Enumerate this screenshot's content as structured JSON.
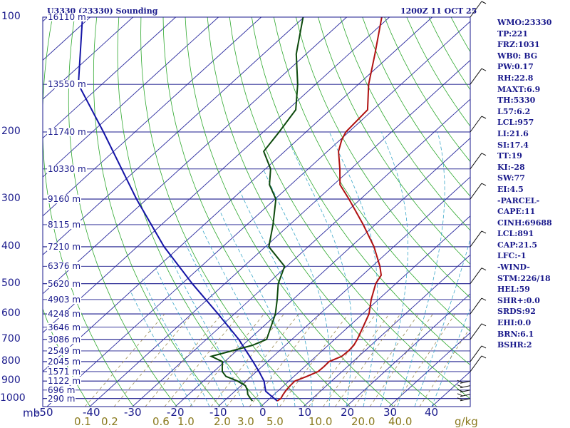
{
  "chart_data": {
    "type": "line",
    "title": "U3330 (23330) Sounding",
    "datetime": "1200Z 11 OCT 25",
    "y_axis_label": "mb",
    "y_axis_unit_label": "-50",
    "mixing_ratio_unit": "g/kg",
    "pressure_ticks": [
      "100",
      "200",
      "300",
      "400",
      "500",
      "600",
      "700",
      "800",
      "900",
      "1000"
    ],
    "height_labels": [
      {
        "p": 100,
        "label": "16110 m"
      },
      {
        "p": 150,
        "label": "13550 m"
      },
      {
        "p": 200,
        "label": "11740 m"
      },
      {
        "p": 250,
        "label": "10330 m"
      },
      {
        "p": 300,
        "label": "9160 m"
      },
      {
        "p": 350,
        "label": "8115 m"
      },
      {
        "p": 400,
        "label": "7210 m"
      },
      {
        "p": 450,
        "label": "6376 m"
      },
      {
        "p": 500,
        "label": "5620 m"
      },
      {
        "p": 550,
        "label": "4903 m"
      },
      {
        "p": 600,
        "label": "4248 m"
      },
      {
        "p": 650,
        "label": "3646 m"
      },
      {
        "p": 700,
        "label": "3086 m"
      },
      {
        "p": 750,
        "label": "2549 m"
      },
      {
        "p": 800,
        "label": "2045 m"
      },
      {
        "p": 850,
        "label": "1571 m"
      },
      {
        "p": 900,
        "label": "1122 m"
      },
      {
        "p": 950,
        "label": "696 m"
      },
      {
        "p": 1000,
        "label": "290 m"
      }
    ],
    "temperature_ticks": [
      "-40",
      "-30",
      "-20",
      "-10",
      "0",
      "10",
      "20",
      "30",
      "40"
    ],
    "mixing_ratio_ticks": [
      "0.1",
      "0.2",
      "0.6",
      "1.0",
      "2.0",
      "3.0",
      "5.0",
      "10.0",
      "20.0",
      "40.0"
    ],
    "temperature_profile": [
      {
        "p": 1015,
        "t": 2.4
      },
      {
        "p": 1000,
        "t": 2.6
      },
      {
        "p": 975,
        "t": 2.1
      },
      {
        "p": 950,
        "t": 1.7
      },
      {
        "p": 925,
        "t": 1.5
      },
      {
        "p": 900,
        "t": 1.4
      },
      {
        "p": 875,
        "t": 3.0
      },
      {
        "p": 850,
        "t": 4.4
      },
      {
        "p": 825,
        "t": 4.5
      },
      {
        "p": 800,
        "t": 4.4
      },
      {
        "p": 775,
        "t": 6.0
      },
      {
        "p": 750,
        "t": 6.2
      },
      {
        "p": 725,
        "t": 6.0
      },
      {
        "p": 700,
        "t": 5.3
      },
      {
        "p": 650,
        "t": 3.5
      },
      {
        "p": 600,
        "t": 1.5
      },
      {
        "p": 550,
        "t": -1.7
      },
      {
        "p": 500,
        "t": -4.7
      },
      {
        "p": 475,
        "t": -5.6
      },
      {
        "p": 450,
        "t": -8.2
      },
      {
        "p": 400,
        "t": -14.6
      },
      {
        "p": 350,
        "t": -22.8
      },
      {
        "p": 300,
        "t": -32.7
      },
      {
        "p": 275,
        "t": -38.5
      },
      {
        "p": 250,
        "t": -42.6
      },
      {
        "p": 225,
        "t": -47.4
      },
      {
        "p": 210,
        "t": -49.6
      },
      {
        "p": 200,
        "t": -50.7
      },
      {
        "p": 175,
        "t": -51.3
      },
      {
        "p": 150,
        "t": -57.6
      },
      {
        "p": 125,
        "t": -63.9
      },
      {
        "p": 100,
        "t": -71.8
      }
    ],
    "dewpoint_profile": [
      {
        "p": 1015,
        "td": -3.4
      },
      {
        "p": 1000,
        "td": -4.5
      },
      {
        "p": 975,
        "td": -6.2
      },
      {
        "p": 950,
        "td": -7.4
      },
      {
        "p": 925,
        "td": -9.0
      },
      {
        "p": 900,
        "td": -12.0
      },
      {
        "p": 875,
        "td": -15.9
      },
      {
        "p": 850,
        "td": -18.0
      },
      {
        "p": 800,
        "td": -20.6
      },
      {
        "p": 775,
        "td": -24.5
      },
      {
        "p": 750,
        "td": -21.1
      },
      {
        "p": 725,
        "td": -17.7
      },
      {
        "p": 700,
        "td": -15.9
      },
      {
        "p": 600,
        "td": -20.4
      },
      {
        "p": 550,
        "td": -23.7
      },
      {
        "p": 500,
        "td": -27.5
      },
      {
        "p": 450,
        "td": -30.5
      },
      {
        "p": 400,
        "td": -39.2
      },
      {
        "p": 350,
        "td": -43.9
      },
      {
        "p": 300,
        "td": -49.8
      },
      {
        "p": 275,
        "td": -55.0
      },
      {
        "p": 250,
        "td": -58.8
      },
      {
        "p": 225,
        "td": -64.9
      },
      {
        "p": 200,
        "td": -66.3
      },
      {
        "p": 175,
        "td": -68.1
      },
      {
        "p": 150,
        "td": -74.2
      },
      {
        "p": 125,
        "td": -82.3
      },
      {
        "p": 100,
        "td": -90.2
      }
    ],
    "parcel_profile": [
      {
        "p": 1015,
        "t": 2.4
      },
      {
        "p": 957,
        "t": -2.8
      },
      {
        "p": 900,
        "t": -5.8
      },
      {
        "p": 850,
        "t": -9.4
      },
      {
        "p": 800,
        "t": -13.4
      },
      {
        "p": 700,
        "t": -22.4
      },
      {
        "p": 600,
        "t": -33.8
      },
      {
        "p": 500,
        "t": -47.6
      },
      {
        "p": 400,
        "t": -63.7
      },
      {
        "p": 300,
        "t": -82.4
      },
      {
        "p": 200,
        "t": -107.4
      },
      {
        "p": 150,
        "t": -125.5
      },
      {
        "p": 100,
        "t": -141.8
      }
    ],
    "wind_barbs": [
      {
        "p": 1000
      },
      {
        "p": 975
      },
      {
        "p": 950
      },
      {
        "p": 925
      },
      {
        "p": 900
      },
      {
        "p": 850
      },
      {
        "p": 800
      },
      {
        "p": 700
      },
      {
        "p": 600
      },
      {
        "p": 500
      },
      {
        "p": 400
      },
      {
        "p": 300
      },
      {
        "p": 250
      },
      {
        "p": 200
      },
      {
        "p": 150
      },
      {
        "p": 100
      }
    ],
    "ylim": [
      100,
      1050
    ],
    "xlim_at_base": [
      -50,
      50
    ]
  },
  "stats": [
    "WMO:23330",
    "TP:221",
    "FRZ:1031",
    "WB0: BG",
    "PW:0.17",
    "RH:22.8",
    "MAXT:6.9",
    "TH:5330",
    "L57:6.2",
    "LCL:957",
    "LI:21.6",
    "SI:17.4",
    "TT:19",
    "KI:-28",
    "SW:77",
    "EI:4.5",
    "-PARCEL-",
    "CAPE:11",
    "CINH:69688",
    "LCL:891",
    "CAP:21.5",
    "LFC:-1",
    "-WIND-",
    "STM:226/18",
    "HEL:59",
    "SHR+:0.0",
    "SRDS:92",
    "EHI:0.0",
    "BRN:6.1",
    "BSHR:2"
  ],
  "colors": {
    "text": "#1a1a8c",
    "isobar": "#1a1a8c",
    "isotherm": "#2a2a9e",
    "dry_adiabat": "#2ea82e",
    "moist_adiabat": "#3aa7c9",
    "mixing_ratio": "#9a8a52",
    "temperature": "#b01212",
    "dewpoint": "#0d4a0d",
    "parcel": "#1414a6",
    "mixing_label": "#8a7a1e",
    "background": "#ffffff"
  }
}
